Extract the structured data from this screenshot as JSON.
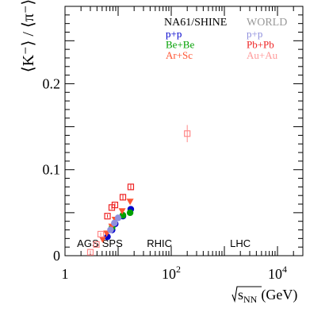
{
  "chart_data": {
    "type": "scatter",
    "xscale": "log",
    "xlim": [
      1,
      30000
    ],
    "ylim": [
      0,
      0.29
    ],
    "ylabel": "⟨K⁻⟩ / ⟨π⁻⟩",
    "xlabel_root": "s",
    "xlabel_sub": "NN",
    "xlabel_unit": "(GeV)",
    "x_ticks": [
      {
        "value": 1,
        "label": "1"
      },
      {
        "value": 100,
        "label": "10",
        "exp": "2"
      },
      {
        "value": 10000,
        "label": "10",
        "exp": "4"
      }
    ],
    "y_ticks": [
      {
        "value": 0,
        "label": "0"
      },
      {
        "value": 0.1,
        "label": "0.1"
      },
      {
        "value": 0.2,
        "label": "0.2"
      }
    ],
    "legend": {
      "left_title": "NA61/SHINE",
      "right_title": "WORLD",
      "left_entries": [
        {
          "label": "p+p",
          "color": "#0000cc"
        },
        {
          "label": "Be+Be",
          "color": "#00a000"
        },
        {
          "label": "Ar+Sc",
          "color": "#ff5533"
        }
      ],
      "right_entries": [
        {
          "label": "p+p",
          "color": "#9090dd"
        },
        {
          "label": "Pb+Pb",
          "color": "#ee2222"
        },
        {
          "label": "Au+Au",
          "color": "#ff9999"
        }
      ],
      "right_title_color": "#999999"
    },
    "regions": [
      {
        "label": "AGS",
        "x": 2.7
      },
      {
        "label": "SPS",
        "x": 7.8
      },
      {
        "label": "RHIC",
        "x": 60
      },
      {
        "label": "LHC",
        "x": 2000
      }
    ],
    "series": [
      {
        "name": "p+p",
        "marker": "circle",
        "color": "#0000cc",
        "filled": true,
        "x": [
          6.3,
          7.7,
          8.8,
          12.3,
          17.3
        ],
        "y": [
          0.022,
          0.03,
          0.037,
          0.046,
          0.054
        ]
      },
      {
        "name": "Be+Be",
        "marker": "circle",
        "color": "#00a000",
        "filled": true,
        "x": [
          7.7,
          12.3,
          16.8
        ],
        "y": [
          0.033,
          0.047,
          0.05
        ]
      },
      {
        "name": "Ar+Sc",
        "marker": "triangle-down",
        "color": "#ff5533",
        "filled": true,
        "x": [
          5.1,
          6.1,
          7.6,
          8.8,
          11.9,
          16.8
        ],
        "y": [
          0.019,
          0.026,
          0.034,
          0.042,
          0.052,
          0.063
        ]
      },
      {
        "name": "p+p",
        "marker": "circle",
        "color": "#9090dd",
        "filled": true,
        "x": [
          7.2,
          8.5,
          10.0
        ],
        "y": [
          0.03,
          0.038,
          0.044
        ]
      },
      {
        "name": "Pb+Pb",
        "marker": "square-open",
        "color": "#ee2222",
        "filled": false,
        "x": [
          6.3,
          7.6,
          8.7,
          12.3,
          17.3
        ],
        "y": [
          0.046,
          0.056,
          0.059,
          0.068,
          0.08
        ],
        "err": [
          0.002,
          0.002,
          0.002,
          0.003,
          0.003
        ]
      },
      {
        "name": "Au+Au",
        "marker": "square-open",
        "color": "#ff8888",
        "filled": false,
        "x": [
          3.0,
          3.9,
          4.7,
          200
        ],
        "y": [
          0.004,
          0.013,
          0.025,
          0.142
        ],
        "err": [
          0.002,
          0.002,
          0.002,
          0.01
        ]
      }
    ]
  }
}
